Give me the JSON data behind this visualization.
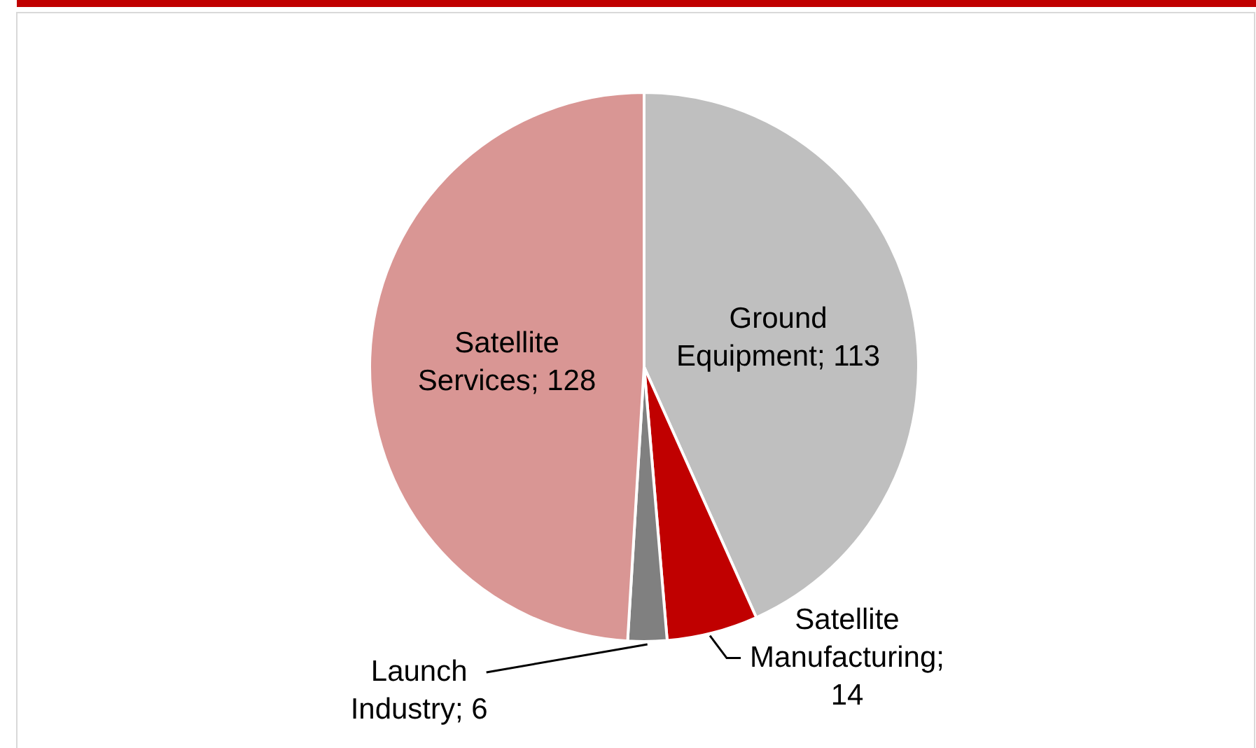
{
  "chart_data": {
    "type": "pie",
    "categories": [
      "Ground Equipment",
      "Satellite Manufacturing",
      "Launch Industry",
      "Satellite Services"
    ],
    "values": [
      113,
      14,
      6,
      128
    ],
    "colors": [
      "#bfbfbf",
      "#c00000",
      "#808080",
      "#d99694"
    ],
    "value_labels": [
      "; 113",
      "; 14",
      "; 6",
      "; 128"
    ]
  }
}
